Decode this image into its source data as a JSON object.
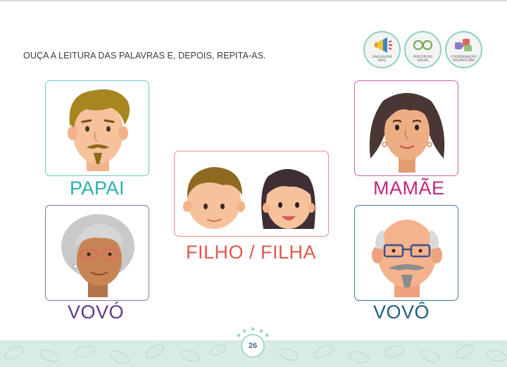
{
  "instruction": "OUÇA A LEITURA DAS PALAVRAS E, DEPOIS, REPITA-AS.",
  "badges": [
    {
      "icon": "megaphone-icon",
      "label_line1": "LINGUAGEM",
      "label_line2": "ORAL"
    },
    {
      "icon": "glasses-icon",
      "label_line1": "PERCEPÇÃO",
      "label_line2": "VISUAL"
    },
    {
      "icon": "puzzle-icon",
      "label_line1": "COORDENAÇÃO",
      "label_line2": "VISOMOTORA"
    }
  ],
  "cards": [
    {
      "id": "papai",
      "word": "PAPAI",
      "color": "#2ab0a8",
      "border": "#6ccac4"
    },
    {
      "id": "mamae",
      "word": "MAMÃE",
      "color": "#c0287c",
      "border": "#c96aa5"
    },
    {
      "id": "filho",
      "word": "FILHO / FILHA",
      "color": "#e2584e",
      "border": "#e6907f"
    },
    {
      "id": "vovo-f",
      "word": "VOVÓ",
      "color": "#5e3c86",
      "border": "#8a70a9"
    },
    {
      "id": "vovo-m",
      "word": "VOVÔ",
      "color": "#1f5e82",
      "border": "#3d7a99"
    }
  ],
  "page_number": "26"
}
